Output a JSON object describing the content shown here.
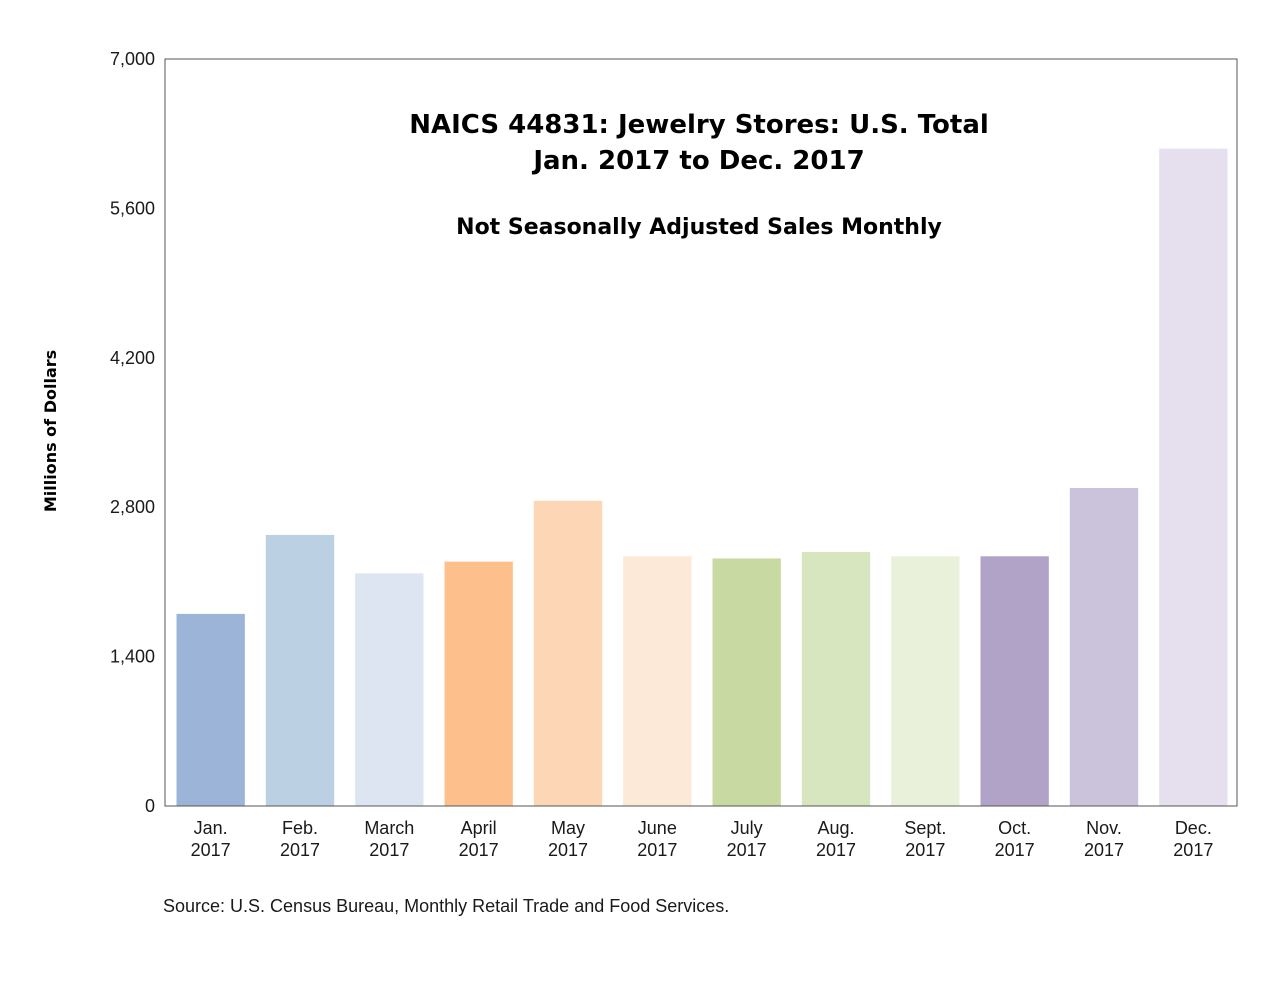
{
  "chart_data": {
    "type": "bar",
    "title_lines": [
      "NAICS 44831: Jewelry Stores: U.S. Total",
      "Jan. 2017 to Dec. 2017"
    ],
    "subtitle": "Not Seasonally Adjusted Sales Monthly",
    "xlabel": "",
    "ylabel": "Millions of Dollars",
    "ylim": [
      0,
      7000
    ],
    "yticks": [
      0,
      1400,
      2800,
      4200,
      5600,
      7000
    ],
    "ytick_labels": [
      "0",
      "1,400",
      "2,800",
      "4,200",
      "5,600",
      "7,000"
    ],
    "grid": false,
    "categories": [
      [
        "Jan.",
        "2017"
      ],
      [
        "Feb.",
        "2017"
      ],
      [
        "March",
        "2017"
      ],
      [
        "April",
        "2017"
      ],
      [
        "May",
        "2017"
      ],
      [
        "June",
        "2017"
      ],
      [
        "July",
        "2017"
      ],
      [
        "Aug.",
        "2017"
      ],
      [
        "Sept.",
        "2017"
      ],
      [
        "Oct.",
        "2017"
      ],
      [
        "Nov.",
        "2017"
      ],
      [
        "Dec.",
        "2017"
      ]
    ],
    "values": [
      1800,
      2540,
      2180,
      2290,
      2860,
      2340,
      2320,
      2380,
      2340,
      2340,
      2980,
      6160
    ],
    "colors": [
      "#9bb4d8",
      "#bcd0e4",
      "#dde5f3",
      "#fdc08c",
      "#fdd6b6",
      "#fce9d7",
      "#c8daa1",
      "#d8e6bf",
      "#e9f1db",
      "#b1a2c8",
      "#cbc2dc",
      "#e6e0ee"
    ]
  },
  "source": "Source: U.S. Census Bureau, Monthly Retail Trade and Food Services."
}
